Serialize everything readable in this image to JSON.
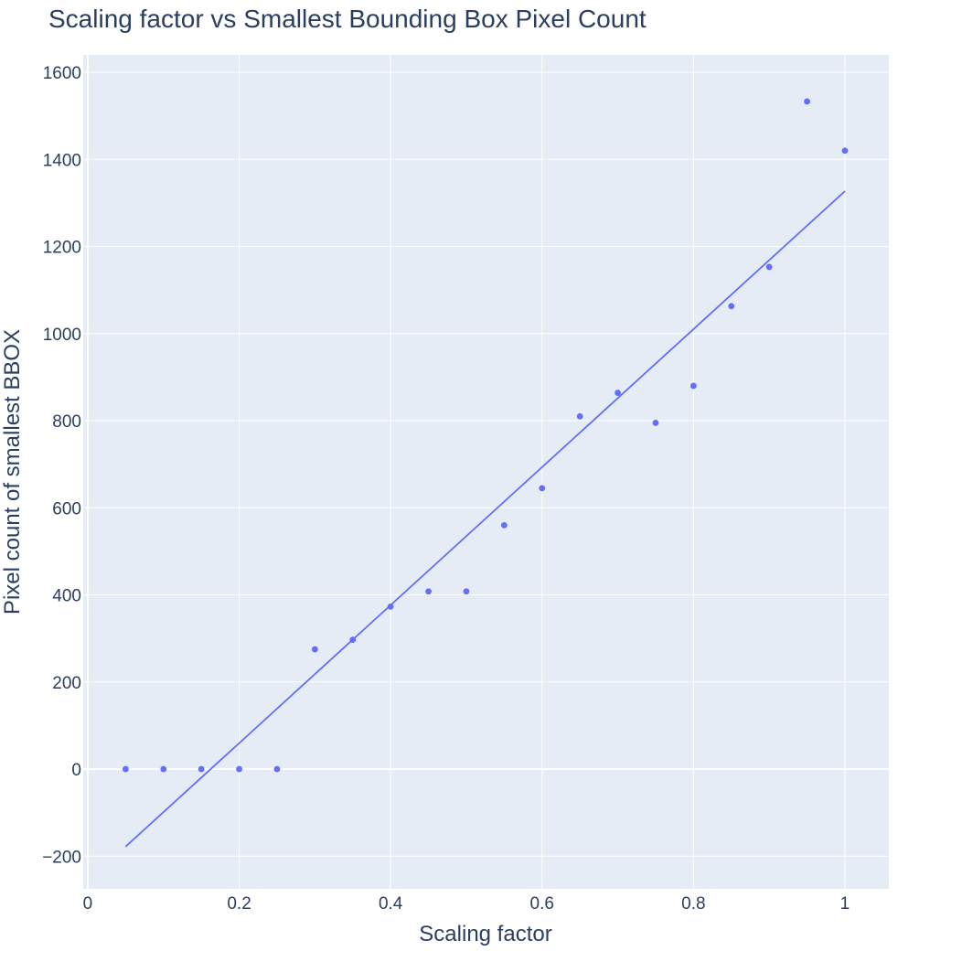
{
  "chart_data": {
    "type": "scatter",
    "title": "Scaling factor vs Smallest Bounding Box Pixel Count",
    "xlabel": "Scaling factor",
    "ylabel": "Pixel count of smallest BBOX",
    "xlim": [
      -0.006,
      1.058
    ],
    "ylim": [
      -275,
      1640
    ],
    "x_ticks": [
      0,
      0.2,
      0.4,
      0.6,
      0.8,
      1
    ],
    "x_tick_labels": [
      "0",
      "0.2",
      "0.4",
      "0.6",
      "0.8",
      "1"
    ],
    "y_ticks": [
      -200,
      0,
      200,
      400,
      600,
      800,
      1000,
      1200,
      1400,
      1600
    ],
    "y_tick_labels": [
      "−200",
      "0",
      "200",
      "400",
      "600",
      "800",
      "1000",
      "1200",
      "1400",
      "1600"
    ],
    "grid": true,
    "series": [
      {
        "mode": "markers",
        "color": "#636efa",
        "x": [
          0.05,
          0.1,
          0.15,
          0.2,
          0.25,
          0.3,
          0.35,
          0.4,
          0.45,
          0.5,
          0.55,
          0.6,
          0.65,
          0.7,
          0.75,
          0.8,
          0.85,
          0.9,
          0.95,
          1.0
        ],
        "y": [
          0,
          0,
          0,
          0,
          0,
          275,
          297,
          373,
          408,
          408,
          560,
          645,
          810,
          864,
          795,
          880,
          1063,
          1153,
          1533,
          1420
        ]
      },
      {
        "mode": "lines",
        "color": "#636efa",
        "x": [
          0.05,
          1.0
        ],
        "y": [
          -178,
          1327
        ]
      }
    ]
  },
  "colors": {
    "plot_background": "#e5ecf6",
    "grid": "#ffffff",
    "text": "#2a3f5f",
    "series": "#636efa"
  }
}
